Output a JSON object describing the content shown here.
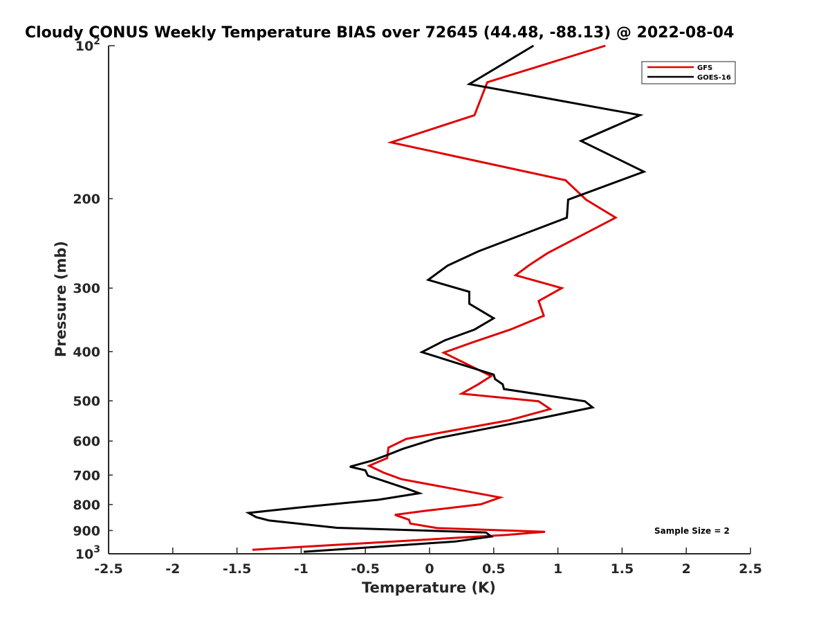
{
  "chart_data": {
    "type": "line",
    "title": "Cloudy CONUS Weekly Temperature BIAS over 72645 (44.48, -88.13) @ 2022-08-04",
    "xlabel": "Temperature (K)",
    "ylabel": "Pressure (mb)",
    "xlim": [
      -2.5,
      2.5
    ],
    "ylim": [
      100,
      1000
    ],
    "y_scale": "log",
    "y_reversed": true,
    "grid": false,
    "legend_position": "top-right",
    "x_ticks": [
      "-2.5",
      "-2",
      "-1.5",
      "-1",
      "-0.5",
      "0",
      "0.5",
      "1",
      "1.5",
      "2",
      "2.5"
    ],
    "x_tick_values": [
      -2.5,
      -2,
      -1.5,
      -1,
      -0.5,
      0,
      0.5,
      1,
      1.5,
      2,
      2.5
    ],
    "y_ticks": [
      {
        "value": 200,
        "label": "200"
      },
      {
        "value": 300,
        "label": "300"
      },
      {
        "value": 400,
        "label": "400"
      },
      {
        "value": 500,
        "label": "500"
      },
      {
        "value": 600,
        "label": "600"
      },
      {
        "value": 700,
        "label": "700"
      },
      {
        "value": 800,
        "label": "800"
      },
      {
        "value": 900,
        "label": "900"
      }
    ],
    "y_tick_powers": [
      {
        "value": 100,
        "base": "10",
        "exponent": "2"
      },
      {
        "value": 1000,
        "base": "10",
        "exponent": "3"
      }
    ],
    "series": [
      {
        "name": "GFS",
        "color": "#e00000",
        "points": [
          {
            "x": 1.37,
            "y": 100
          },
          {
            "x": 0.45,
            "y": 118
          },
          {
            "x": 0.35,
            "y": 137
          },
          {
            "x": -0.3,
            "y": 155
          },
          {
            "x": 1.06,
            "y": 184
          },
          {
            "x": 1.22,
            "y": 201
          },
          {
            "x": 1.45,
            "y": 218
          },
          {
            "x": 0.92,
            "y": 256
          },
          {
            "x": 0.78,
            "y": 270
          },
          {
            "x": 0.67,
            "y": 283
          },
          {
            "x": 1.03,
            "y": 300
          },
          {
            "x": 0.85,
            "y": 318
          },
          {
            "x": 0.89,
            "y": 340
          },
          {
            "x": 0.63,
            "y": 362
          },
          {
            "x": 0.33,
            "y": 384
          },
          {
            "x": 0.11,
            "y": 402
          },
          {
            "x": 0.48,
            "y": 447
          },
          {
            "x": 0.38,
            "y": 464
          },
          {
            "x": 0.25,
            "y": 484
          },
          {
            "x": 0.85,
            "y": 501
          },
          {
            "x": 0.94,
            "y": 519
          },
          {
            "x": 0.62,
            "y": 546
          },
          {
            "x": -0.18,
            "y": 594
          },
          {
            "x": -0.32,
            "y": 618
          },
          {
            "x": -0.33,
            "y": 648
          },
          {
            "x": -0.47,
            "y": 671
          },
          {
            "x": -0.36,
            "y": 692
          },
          {
            "x": -0.22,
            "y": 713
          },
          {
            "x": 0.55,
            "y": 775
          },
          {
            "x": 0.4,
            "y": 799
          },
          {
            "x": -0.03,
            "y": 823
          },
          {
            "x": -0.27,
            "y": 838
          },
          {
            "x": -0.16,
            "y": 857
          },
          {
            "x": -0.15,
            "y": 872
          },
          {
            "x": 0.06,
            "y": 890
          },
          {
            "x": 0.9,
            "y": 905
          },
          {
            "x": 0.6,
            "y": 918
          },
          {
            "x": -1.38,
            "y": 982
          }
        ]
      },
      {
        "name": "GOES-16",
        "color": "#000000",
        "points": [
          {
            "x": 0.81,
            "y": 100
          },
          {
            "x": 0.31,
            "y": 119
          },
          {
            "x": 1.64,
            "y": 137
          },
          {
            "x": 1.18,
            "y": 154
          },
          {
            "x": 1.67,
            "y": 177
          },
          {
            "x": 1.08,
            "y": 201
          },
          {
            "x": 1.07,
            "y": 218
          },
          {
            "x": 0.38,
            "y": 254
          },
          {
            "x": 0.14,
            "y": 271
          },
          {
            "x": -0.01,
            "y": 289
          },
          {
            "x": 0.31,
            "y": 305
          },
          {
            "x": 0.31,
            "y": 322
          },
          {
            "x": 0.5,
            "y": 344
          },
          {
            "x": 0.35,
            "y": 362
          },
          {
            "x": 0.12,
            "y": 380
          },
          {
            "x": -0.06,
            "y": 401
          },
          {
            "x": 0.5,
            "y": 444
          },
          {
            "x": 0.51,
            "y": 453
          },
          {
            "x": 0.57,
            "y": 464
          },
          {
            "x": 0.58,
            "y": 474
          },
          {
            "x": 1.21,
            "y": 501
          },
          {
            "x": 1.27,
            "y": 515
          },
          {
            "x": 0.91,
            "y": 538
          },
          {
            "x": 0.05,
            "y": 593
          },
          {
            "x": -0.21,
            "y": 622
          },
          {
            "x": -0.32,
            "y": 638
          },
          {
            "x": -0.45,
            "y": 656
          },
          {
            "x": -0.62,
            "y": 674
          },
          {
            "x": -0.5,
            "y": 685
          },
          {
            "x": -0.48,
            "y": 702
          },
          {
            "x": -0.18,
            "y": 744
          },
          {
            "x": -0.08,
            "y": 760
          },
          {
            "x": -0.4,
            "y": 783
          },
          {
            "x": -1.02,
            "y": 811
          },
          {
            "x": -1.41,
            "y": 831
          },
          {
            "x": -1.35,
            "y": 847
          },
          {
            "x": -1.25,
            "y": 860
          },
          {
            "x": -0.72,
            "y": 889
          },
          {
            "x": 0.44,
            "y": 908
          },
          {
            "x": 0.48,
            "y": 925
          },
          {
            "x": 0.2,
            "y": 946
          },
          {
            "x": -0.98,
            "y": 991
          }
        ]
      }
    ],
    "legend": [
      {
        "name": "GFS",
        "color": "#e00000"
      },
      {
        "name": "GOES-16",
        "color": "#000000"
      }
    ],
    "annotation": "Sample Size = 2"
  }
}
